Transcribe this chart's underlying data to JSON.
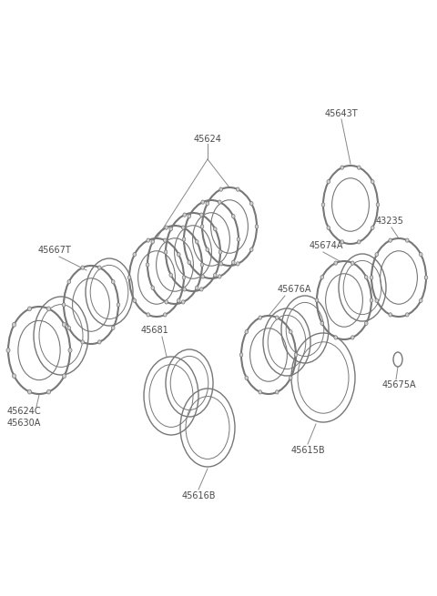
{
  "background_color": "#ffffff",
  "text_color": "#4a4a4a",
  "line_color": "#888888",
  "ring_color": "#777777",
  "figsize": [
    4.8,
    6.55
  ],
  "dpi": 100,
  "font_size": 7.0,
  "xlim": [
    0,
    480
  ],
  "ylim": [
    0,
    655
  ]
}
